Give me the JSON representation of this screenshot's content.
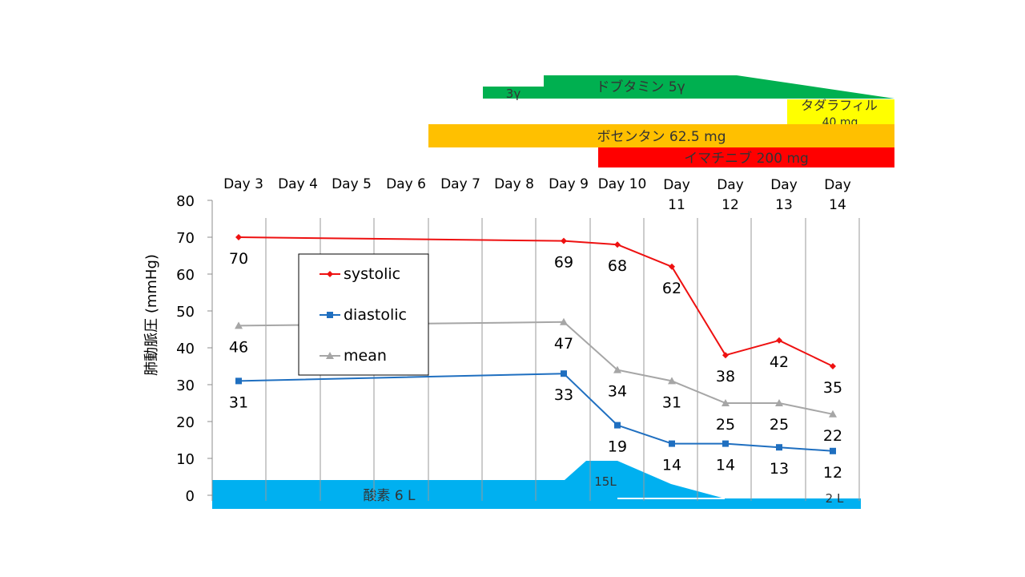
{
  "chart_data": {
    "type": "line",
    "title": "",
    "xlabel": "",
    "ylabel": "肺動脈圧 (mmHg)",
    "ylim": [
      0,
      80
    ],
    "yticks": [
      "0",
      "10",
      "20",
      "30",
      "40",
      "50",
      "60",
      "70",
      "80"
    ],
    "categories": [
      "Day 3",
      "Day 4",
      "Day 5",
      "Day 6",
      "Day 7",
      "Day 8",
      "Day 9",
      "Day 10",
      "Day 11",
      "Day 12",
      "Day 13",
      "Day 14"
    ],
    "grid": "vertical",
    "legend_position": "left",
    "series": [
      {
        "name": "systolic",
        "color": "#ee1111",
        "marker": "diamond",
        "points": [
          {
            "x": "Day 3",
            "y": 70
          },
          {
            "x": "Day 9",
            "y": 69
          },
          {
            "x": "Day 10",
            "y": 68
          },
          {
            "x": "Day 11",
            "y": 62
          },
          {
            "x": "Day 12",
            "y": 38
          },
          {
            "x": "Day 13",
            "y": 42
          },
          {
            "x": "Day 14",
            "y": 35
          }
        ]
      },
      {
        "name": "diastolic",
        "color": "#1f6fc0",
        "marker": "square",
        "points": [
          {
            "x": "Day 3",
            "y": 31
          },
          {
            "x": "Day 9",
            "y": 33
          },
          {
            "x": "Day 10",
            "y": 19
          },
          {
            "x": "Day 11",
            "y": 14
          },
          {
            "x": "Day 12",
            "y": 14
          },
          {
            "x": "Day 13",
            "y": 13
          },
          {
            "x": "Day 14",
            "y": 12
          }
        ]
      },
      {
        "name": "mean",
        "color": "#a6a6a6",
        "marker": "triangle",
        "points": [
          {
            "x": "Day 3",
            "y": 46
          },
          {
            "x": "Day 9",
            "y": 47
          },
          {
            "x": "Day 10",
            "y": 34
          },
          {
            "x": "Day 11",
            "y": 31
          },
          {
            "x": "Day 12",
            "y": 25
          },
          {
            "x": "Day 13",
            "y": 25
          },
          {
            "x": "Day 14",
            "y": 22
          }
        ]
      }
    ],
    "oxygen": {
      "color": "#00b0f0",
      "label_main": "酸素 6 L",
      "label_peak": "15L",
      "label_end": "2 L"
    },
    "medications": [
      {
        "label": "ドブタミン 5γ",
        "sublabel": "3γ",
        "color": "#00b050"
      },
      {
        "label": "タダラフィル",
        "sublabel": "40 mg",
        "color": "#ffff00"
      },
      {
        "label": "ボセンタン 62.5 mg",
        "color": "#ffc000"
      },
      {
        "label": "イマチニブ 200 mg",
        "color": "#ff0000"
      }
    ]
  }
}
